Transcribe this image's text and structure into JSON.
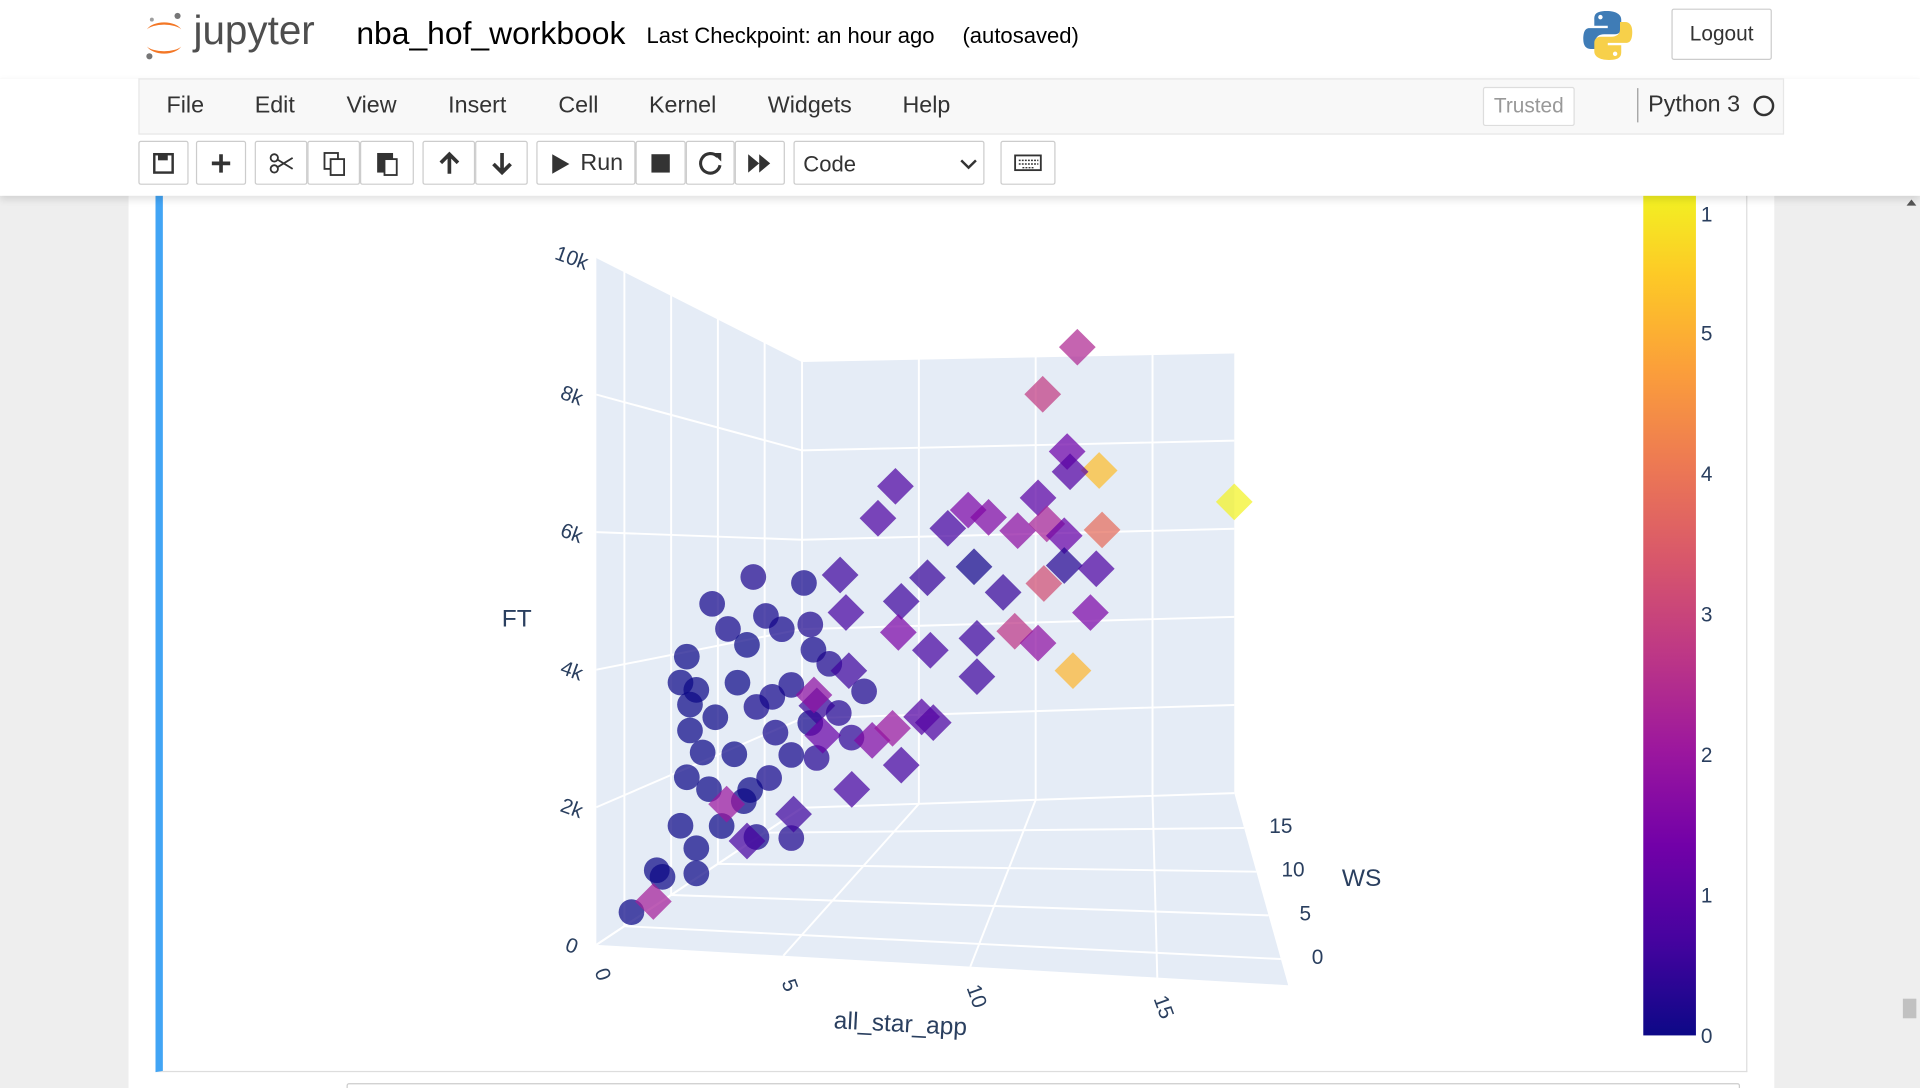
{
  "header": {
    "logo_text": "jupyter",
    "notebook_name": "nba_hof_workbook",
    "checkpoint": "Last Checkpoint: an hour ago",
    "autosave": "(autosaved)",
    "logout": "Logout"
  },
  "menu": {
    "items": [
      "File",
      "Edit",
      "View",
      "Insert",
      "Cell",
      "Kernel",
      "Widgets",
      "Help"
    ],
    "trusted": "Trusted",
    "kernel": "Python 3"
  },
  "toolbar": {
    "run": "Run",
    "cell_type": "Code"
  },
  "chart_data": {
    "type": "scatter3d",
    "xlabel": "all_star_app",
    "ylabel": "WS",
    "zlabel": "FT",
    "xlim": [
      0,
      18.5
    ],
    "ylim": [
      -3,
      19
    ],
    "zlim": [
      0,
      10000
    ],
    "xticks": [
      0,
      5,
      10,
      15
    ],
    "yticks": [
      0,
      5,
      10,
      15
    ],
    "zticks": [
      0,
      {
        "value": 2000,
        "label": "2k"
      },
      {
        "value": 4000,
        "label": "4k"
      },
      {
        "value": 6000,
        "label": "6k"
      },
      {
        "value": 8000,
        "label": "8k"
      },
      {
        "value": 10000,
        "label": "10k"
      }
    ],
    "colorscale": [
      "#0d0887",
      "#46039f",
      "#7201a8",
      "#9c179e",
      "#bd3786",
      "#d8576b",
      "#ed7953",
      "#fb9f3a",
      "#fdca26",
      "#f0f921"
    ],
    "colorbar": {
      "range": [
        0,
        6.1
      ],
      "ticks": [
        0,
        1,
        2,
        3,
        4,
        5
      ],
      "clipped_label": "1"
    },
    "series": [
      {
        "marker": "circle",
        "x": [
          2.3,
          1,
          1.5,
          2.7,
          4.1,
          4.2,
          2.1,
          3.2,
          0.5,
          0.3,
          0.2,
          0,
          0.4,
          0.2,
          0.5,
          1.3,
          2,
          2.8,
          3.5,
          1.7,
          0.9,
          2.4,
          3.5,
          4.7,
          1.8,
          1.1,
          0.7,
          2.4,
          0.5,
          0.3,
          3.5,
          2.2,
          3,
          4.1,
          4.3,
          5,
          5.4,
          5.8,
          0,
          0.3,
          0.2,
          2.9,
          3.9
        ],
        "y": [
          6,
          6,
          6,
          6,
          6,
          6,
          6,
          6,
          6,
          6,
          6,
          6,
          2,
          0,
          6,
          6,
          6,
          6,
          6,
          6,
          6,
          6,
          6,
          6,
          6,
          6,
          6,
          6,
          6,
          3,
          6,
          6,
          6,
          6,
          6,
          6,
          6,
          6,
          6,
          6,
          6,
          6,
          6
        ],
        "z": [
          5450,
          4900,
          4500,
          4800,
          4740,
          4300,
          4260,
          4600,
          3400,
          2700,
          1900,
          1070,
          700,
          220,
          700,
          1100,
          1550,
          1980,
          2410,
          2350,
          1720,
          3200,
          3640,
          4080,
          3590,
          2960,
          2340,
          940,
          270,
          500,
          950,
          1750,
          2780,
          3000,
          2390,
          3220,
          2800,
          3650,
          3500,
          3140,
          3950,
          3400,
          5460
        ],
        "color_values": [
          0.2,
          0.1,
          0.1,
          0.1,
          0.2,
          0.1,
          0,
          0.1,
          0,
          0,
          0,
          0,
          0,
          0,
          0,
          0,
          0,
          0.1,
          0.1,
          0,
          0,
          0.1,
          0.1,
          0.2,
          0,
          0,
          0,
          0.1,
          0,
          0,
          0.2,
          0,
          0.1,
          0.1,
          0.3,
          0.3,
          0.4,
          0.2,
          0,
          0,
          0,
          0.1,
          0.1
        ]
      },
      {
        "marker": "diamond",
        "x": [
          12,
          11,
          12,
          13.1,
          18.3,
          13.2,
          11,
          12.1,
          6.1,
          5.5,
          8.6,
          9.3,
          7.9,
          10.3,
          11.3,
          11.9,
          11.9,
          13,
          11.2,
          12.8,
          8.8,
          10.2,
          11,
          12.2,
          7.2,
          4.2,
          6.3,
          4.4,
          6.2,
          8.9,
          9.8,
          7.3,
          8.9,
          4.5,
          7.4,
          5.3,
          6.3,
          4.6,
          2.6,
          1,
          3.4,
          0.3,
          0.3,
          3.6,
          7,
          3.3,
          6
        ],
        "y": [
          16,
          12,
          10,
          10,
          17,
          10,
          10,
          10,
          10,
          10,
          10,
          10,
          10,
          10,
          10,
          10,
          10,
          10,
          10,
          10,
          10,
          10,
          10,
          10,
          10,
          10,
          10,
          10,
          10,
          10,
          10,
          10,
          10,
          10,
          10,
          10,
          10,
          10,
          10,
          10,
          10,
          2,
          10,
          10,
          10,
          10,
          10
        ],
        "z": [
          10300,
          9400,
          8400,
          8100,
          6900,
          6900,
          7400,
          8000,
          7300,
          6650,
          7000,
          6900,
          6600,
          6700,
          6900,
          6700,
          6100,
          6100,
          5700,
          5200,
          5900,
          4700,
          4500,
          4000,
          5600,
          5500,
          5100,
          4800,
          4500,
          4500,
          5450,
          4200,
          3750,
          3700,
          2800,
          2400,
          1950,
          1450,
          950,
          430,
          3000,
          200,
          1100,
          2450,
          2900,
          3200,
          2650
        ],
        "color_values": [
          2.4,
          2.8,
          1.3,
          5.2,
          6,
          3.8,
          1,
          0.9,
          0.8,
          0.8,
          1.5,
          1.6,
          0.7,
          1.8,
          2.3,
          1.2,
          0.3,
          0.8,
          3.2,
          1.5,
          0.1,
          2.7,
          1.8,
          5.1,
          0.5,
          0.6,
          0.6,
          0.7,
          1.5,
          0.6,
          0.5,
          0.7,
          0.6,
          0.6,
          0.8,
          1.6,
          0.7,
          0.7,
          0.6,
          0.7,
          0.5,
          2.2,
          2,
          1.2,
          0.9,
          1.8,
          2
        ]
      }
    ]
  }
}
